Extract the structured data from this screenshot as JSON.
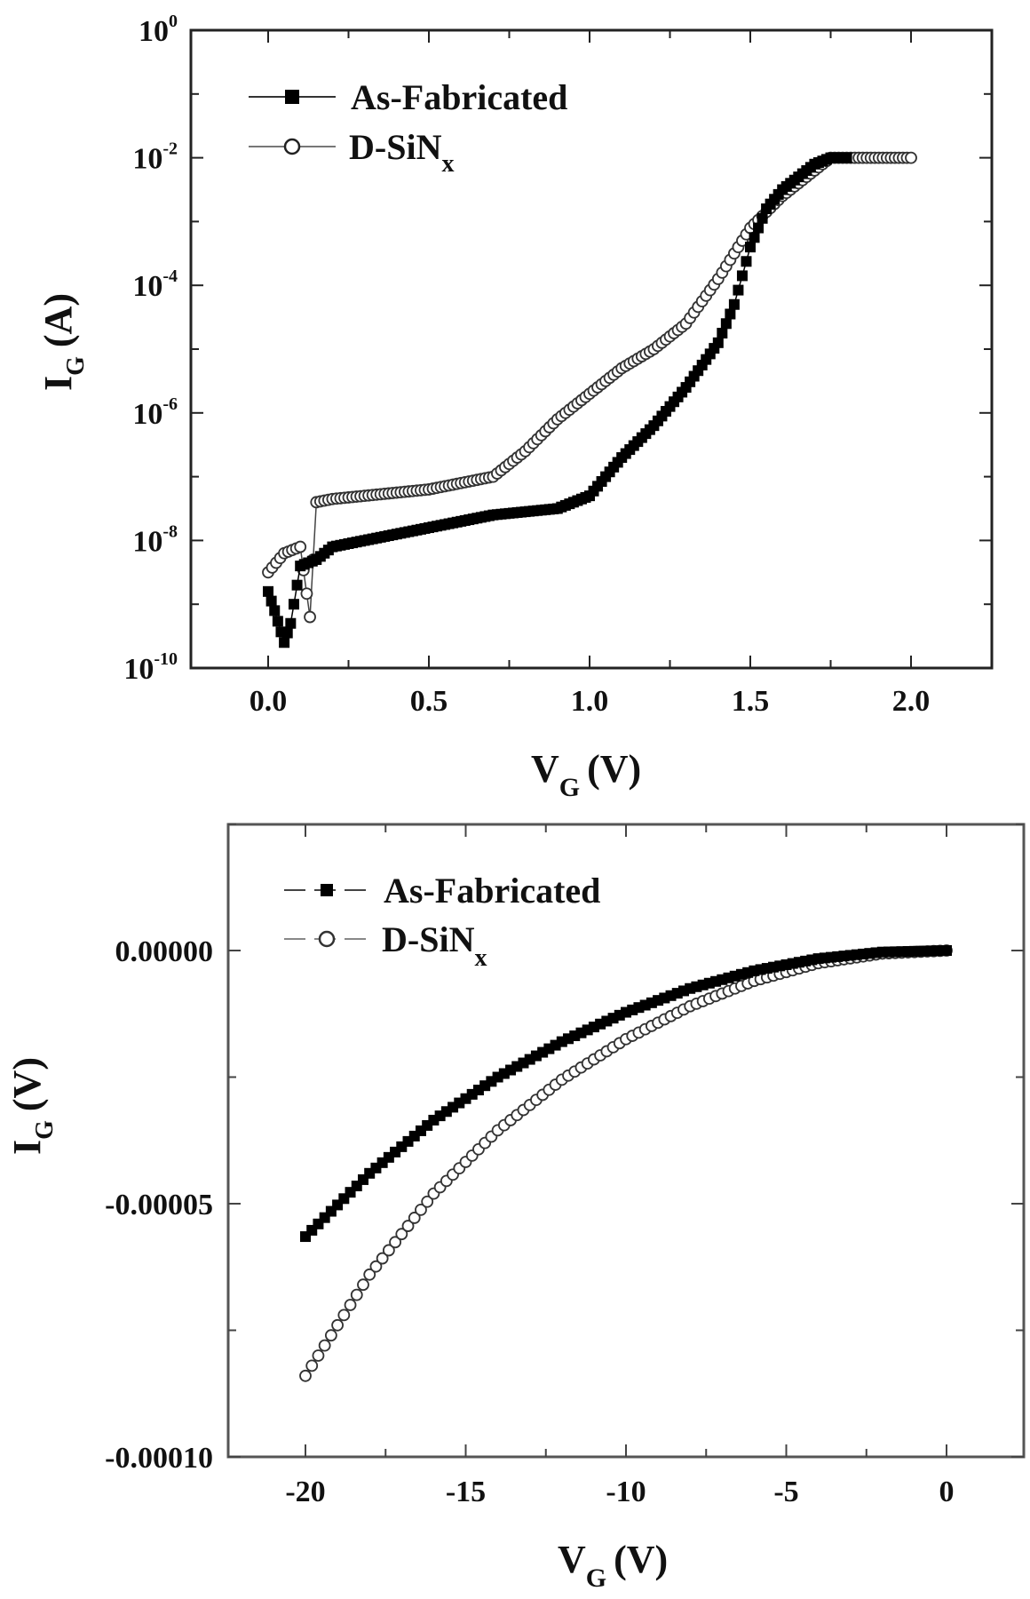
{
  "chart_data": [
    {
      "type": "scatter",
      "title": "",
      "xlabel": "V_G (V)",
      "ylabel": "I_G (A)",
      "yscale": "log",
      "xlim": [
        -0.25,
        2.25
      ],
      "ylim": [
        1e-10,
        1
      ],
      "grid": false,
      "legend_position": "upper left",
      "x_ticks": [
        "0.0",
        "0.5",
        "1.0",
        "1.5",
        "2.0"
      ],
      "y_ticks": [
        "10^0",
        "10^-2",
        "10^-4",
        "10^-6",
        "10^-8",
        "10^-10"
      ],
      "series": [
        {
          "name": "As-Fabricated",
          "marker": "filled-square",
          "x": [
            0.0,
            0.02,
            0.05,
            0.07,
            0.1,
            0.15,
            0.2,
            0.3,
            0.4,
            0.5,
            0.6,
            0.7,
            0.8,
            0.9,
            1.0,
            1.05,
            1.1,
            1.2,
            1.3,
            1.4,
            1.45,
            1.5,
            1.55,
            1.6,
            1.7,
            1.75,
            1.8
          ],
          "log10_y": [
            -8.8,
            -9.1,
            -9.6,
            -9.3,
            -8.4,
            -8.3,
            -8.1,
            -8.0,
            -7.9,
            -7.8,
            -7.7,
            -7.6,
            -7.55,
            -7.5,
            -7.3,
            -7.0,
            -6.7,
            -6.2,
            -5.6,
            -4.9,
            -4.3,
            -3.4,
            -2.8,
            -2.5,
            -2.1,
            -2.0,
            -2.0
          ]
        },
        {
          "name": "D-SiNx",
          "marker": "open-circle",
          "x": [
            0.0,
            0.05,
            0.1,
            0.13,
            0.15,
            0.2,
            0.3,
            0.4,
            0.5,
            0.6,
            0.7,
            0.8,
            0.9,
            1.0,
            1.1,
            1.2,
            1.3,
            1.4,
            1.5,
            1.6,
            1.7,
            1.75,
            1.8,
            1.9,
            2.0
          ],
          "log10_y": [
            -8.5,
            -8.2,
            -8.1,
            -9.2,
            -7.4,
            -7.35,
            -7.3,
            -7.25,
            -7.2,
            -7.1,
            -7.0,
            -6.6,
            -6.1,
            -5.7,
            -5.3,
            -5.0,
            -4.6,
            -3.9,
            -3.1,
            -2.6,
            -2.2,
            -2.0,
            -2.0,
            -2.0,
            -2.0
          ]
        }
      ]
    },
    {
      "type": "scatter",
      "title": "",
      "xlabel": "V_G (V)",
      "ylabel": "I_G (V)",
      "yscale": "linear",
      "xlim": [
        -22.5,
        2.5
      ],
      "ylim": [
        -0.0001,
        2.5e-05
      ],
      "grid": false,
      "legend_position": "upper left",
      "x_ticks": [
        "-20",
        "-15",
        "-10",
        "-5",
        "0"
      ],
      "y_ticks": [
        "0.00000",
        "-0.00005",
        "-0.00010"
      ],
      "series": [
        {
          "name": "As-Fabricated",
          "marker": "filled-square",
          "x": [
            -20,
            -18,
            -16,
            -14,
            -12,
            -10,
            -8,
            -6,
            -4,
            -2,
            0
          ],
          "y": [
            -5.65e-05,
            -4.4e-05,
            -3.35e-05,
            -2.5e-05,
            -1.8e-05,
            -1.22e-05,
            -7.5e-06,
            -4e-06,
            -1.6e-06,
            -3e-07,
            0.0
          ]
        },
        {
          "name": "D-SiNx",
          "marker": "open-circle",
          "x": [
            -20,
            -18,
            -16,
            -14,
            -12,
            -10,
            -8,
            -6,
            -4,
            -2,
            0
          ],
          "y": [
            -8.4e-05,
            -6.4e-05,
            -4.8e-05,
            -3.55e-05,
            -2.55e-05,
            -1.75e-05,
            -1.1e-05,
            -6e-06,
            -2.5e-06,
            -6e-07,
            0.0
          ]
        }
      ]
    }
  ],
  "top_chart": {
    "ylabel_main": "I",
    "ylabel_sub": "G",
    "ylabel_unit": "(A)",
    "xlabel_main": "V",
    "xlabel_sub": "G",
    "xlabel_unit": "(V)",
    "legend": [
      {
        "label": "As-Fabricated"
      },
      {
        "label_main": "D-SiN",
        "label_sub": "x"
      }
    ]
  },
  "bottom_chart": {
    "ylabel_main": "I",
    "ylabel_sub": "G",
    "ylabel_unit": "(V)",
    "xlabel_main": "V",
    "xlabel_sub": "G",
    "xlabel_unit": "(V)",
    "legend": [
      {
        "label": "As-Fabricated"
      },
      {
        "label_main": "D-SiN",
        "label_sub": "x"
      }
    ]
  }
}
